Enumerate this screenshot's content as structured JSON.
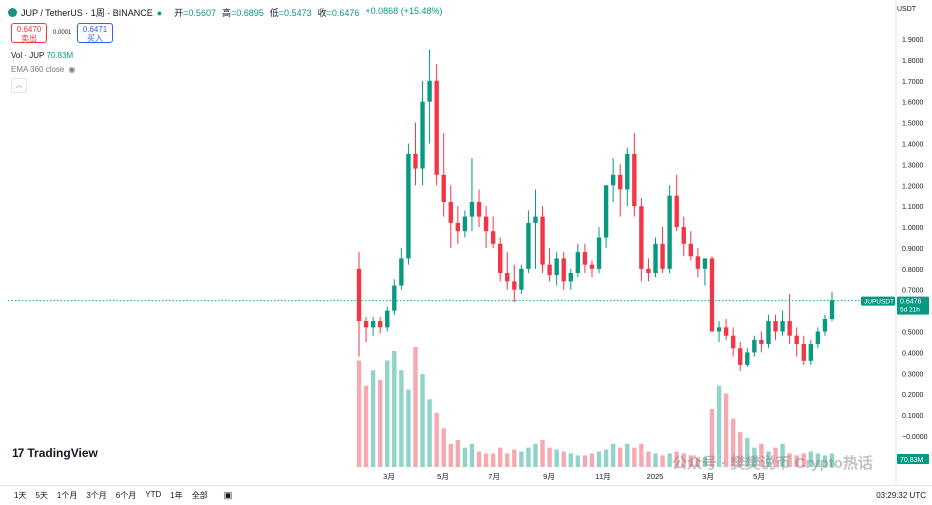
{
  "header": {
    "title": "JUP / TetherUS · 1周 · BINANCE",
    "open_label": "开",
    "open": "=0.5607",
    "high_label": "高",
    "high": "=0.6895",
    "low_label": "低",
    "low": "=0.5473",
    "close_label": "收",
    "close": "=0.6476",
    "change": "+0.0868 (+15.48%)",
    "sell_price": "0.6470",
    "sell_label": "卖出",
    "spread": "0.0001",
    "buy_price": "0.6471",
    "buy_label": "买入"
  },
  "indicators": {
    "vol_label": "Vol · JUP",
    "vol_value": "70.83M",
    "ema_label": "EMA 360 close",
    "collapse_icon": "chevron-up-icon"
  },
  "currency": "USDT",
  "timeframes": [
    "1天",
    "5天",
    "1个月",
    "3个月",
    "6个月",
    "YTD",
    "1年",
    "全部"
  ],
  "time_utc": "03:29:32 UTC",
  "brand": "TradingView",
  "watermark": "公众号 · 樊樊说币 Crypto热话",
  "colors": {
    "up": "#089981",
    "down": "#f23645",
    "up_vol": "#8fd3c9",
    "down_vol": "#f6a9b0"
  },
  "chart_data": {
    "type": "candlestick",
    "price_axis": {
      "ticks": [
        "1.9000",
        "1.8000",
        "1.7000",
        "1.6000",
        "1.5000",
        "1.4000",
        "1.3000",
        "1.2000",
        "1.1000",
        "1.0000",
        "0.9000",
        "0.8000",
        "0.7000",
        "0.6000",
        "0.5000",
        "0.4000",
        "0.3000",
        "0.2000",
        "0.1000",
        "0.0000"
      ],
      "range": [
        0.0,
        1.9
      ],
      "last_price_label": "JUPUSDT",
      "last_price": "0.6476",
      "countdown": "5d 21h",
      "volume_label": "70.83M"
    },
    "x_labels": [
      "3月",
      "5月",
      "7月",
      "9月",
      "11月",
      "2025",
      "3月",
      "5月"
    ],
    "candles": [
      [
        0.8,
        0.88,
        0.38,
        0.55
      ],
      [
        0.55,
        0.57,
        0.45,
        0.52
      ],
      [
        0.52,
        0.57,
        0.48,
        0.55
      ],
      [
        0.55,
        0.57,
        0.49,
        0.52
      ],
      [
        0.52,
        0.62,
        0.5,
        0.6
      ],
      [
        0.6,
        0.75,
        0.58,
        0.72
      ],
      [
        0.72,
        0.9,
        0.7,
        0.85
      ],
      [
        0.85,
        1.4,
        0.82,
        1.35
      ],
      [
        1.35,
        1.5,
        1.2,
        1.28
      ],
      [
        1.28,
        1.7,
        1.2,
        1.6
      ],
      [
        1.6,
        1.85,
        1.4,
        1.7
      ],
      [
        1.7,
        1.78,
        1.2,
        1.25
      ],
      [
        1.25,
        1.45,
        1.05,
        1.12
      ],
      [
        1.12,
        1.2,
        0.9,
        1.02
      ],
      [
        1.02,
        1.1,
        0.92,
        0.98
      ],
      [
        0.98,
        1.08,
        0.95,
        1.05
      ],
      [
        1.05,
        1.33,
        0.98,
        1.12
      ],
      [
        1.12,
        1.18,
        1.0,
        1.05
      ],
      [
        1.05,
        1.1,
        0.9,
        0.98
      ],
      [
        0.98,
        1.05,
        0.9,
        0.92
      ],
      [
        0.92,
        0.95,
        0.74,
        0.78
      ],
      [
        0.78,
        0.88,
        0.7,
        0.74
      ],
      [
        0.74,
        0.82,
        0.64,
        0.7
      ],
      [
        0.7,
        0.82,
        0.68,
        0.8
      ],
      [
        0.8,
        1.08,
        0.78,
        1.02
      ],
      [
        1.02,
        1.18,
        0.8,
        1.05
      ],
      [
        1.05,
        1.1,
        0.78,
        0.82
      ],
      [
        0.82,
        0.9,
        0.74,
        0.77
      ],
      [
        0.77,
        0.88,
        0.72,
        0.85
      ],
      [
        0.85,
        0.88,
        0.7,
        0.74
      ],
      [
        0.74,
        0.8,
        0.7,
        0.78
      ],
      [
        0.78,
        0.92,
        0.76,
        0.88
      ],
      [
        0.88,
        0.92,
        0.78,
        0.82
      ],
      [
        0.82,
        0.84,
        0.76,
        0.8
      ],
      [
        0.8,
        1.0,
        0.78,
        0.95
      ],
      [
        0.95,
        1.2,
        0.9,
        1.2
      ],
      [
        1.2,
        1.33,
        1.12,
        1.25
      ],
      [
        1.25,
        1.3,
        1.05,
        1.18
      ],
      [
        1.18,
        1.38,
        1.1,
        1.35
      ],
      [
        1.35,
        1.45,
        1.05,
        1.1
      ],
      [
        1.1,
        1.14,
        0.74,
        0.8
      ],
      [
        0.8,
        0.85,
        0.74,
        0.78
      ],
      [
        0.78,
        0.95,
        0.76,
        0.92
      ],
      [
        0.92,
        1.0,
        0.78,
        0.8
      ],
      [
        0.8,
        1.2,
        0.78,
        1.15
      ],
      [
        1.15,
        1.25,
        0.98,
        1.0
      ],
      [
        1.0,
        1.05,
        0.86,
        0.92
      ],
      [
        0.92,
        0.98,
        0.84,
        0.86
      ],
      [
        0.86,
        0.9,
        0.76,
        0.8
      ],
      [
        0.8,
        0.85,
        0.72,
        0.85
      ],
      [
        0.85,
        0.86,
        0.5,
        0.5
      ],
      [
        0.5,
        0.55,
        0.45,
        0.52
      ],
      [
        0.52,
        0.56,
        0.46,
        0.48
      ],
      [
        0.48,
        0.52,
        0.38,
        0.42
      ],
      [
        0.42,
        0.45,
        0.31,
        0.34
      ],
      [
        0.34,
        0.42,
        0.33,
        0.4
      ],
      [
        0.4,
        0.48,
        0.38,
        0.46
      ],
      [
        0.46,
        0.5,
        0.4,
        0.44
      ],
      [
        0.44,
        0.58,
        0.42,
        0.55
      ],
      [
        0.55,
        0.58,
        0.46,
        0.5
      ],
      [
        0.5,
        0.6,
        0.48,
        0.55
      ],
      [
        0.55,
        0.68,
        0.44,
        0.48
      ],
      [
        0.48,
        0.52,
        0.38,
        0.44
      ],
      [
        0.44,
        0.48,
        0.34,
        0.36
      ],
      [
        0.36,
        0.46,
        0.34,
        0.44
      ],
      [
        0.44,
        0.52,
        0.42,
        0.5
      ],
      [
        0.5,
        0.58,
        0.48,
        0.56
      ],
      [
        0.56,
        0.69,
        0.55,
        0.65
      ]
    ],
    "volumes": [
      0.55,
      0.42,
      0.5,
      0.45,
      0.55,
      0.6,
      0.5,
      0.4,
      0.62,
      0.48,
      0.35,
      0.28,
      0.2,
      0.12,
      0.14,
      0.1,
      0.12,
      0.08,
      0.07,
      0.07,
      0.1,
      0.07,
      0.09,
      0.08,
      0.1,
      0.12,
      0.14,
      0.1,
      0.09,
      0.08,
      0.07,
      0.06,
      0.06,
      0.07,
      0.08,
      0.09,
      0.12,
      0.1,
      0.12,
      0.1,
      0.12,
      0.08,
      0.07,
      0.06,
      0.07,
      0.08,
      0.07,
      0.06,
      0.05,
      0.05,
      0.3,
      0.42,
      0.38,
      0.25,
      0.18,
      0.15,
      0.1,
      0.12,
      0.08,
      0.1,
      0.12,
      0.07,
      0.06,
      0.07,
      0.08,
      0.07,
      0.06,
      0.07
    ]
  }
}
